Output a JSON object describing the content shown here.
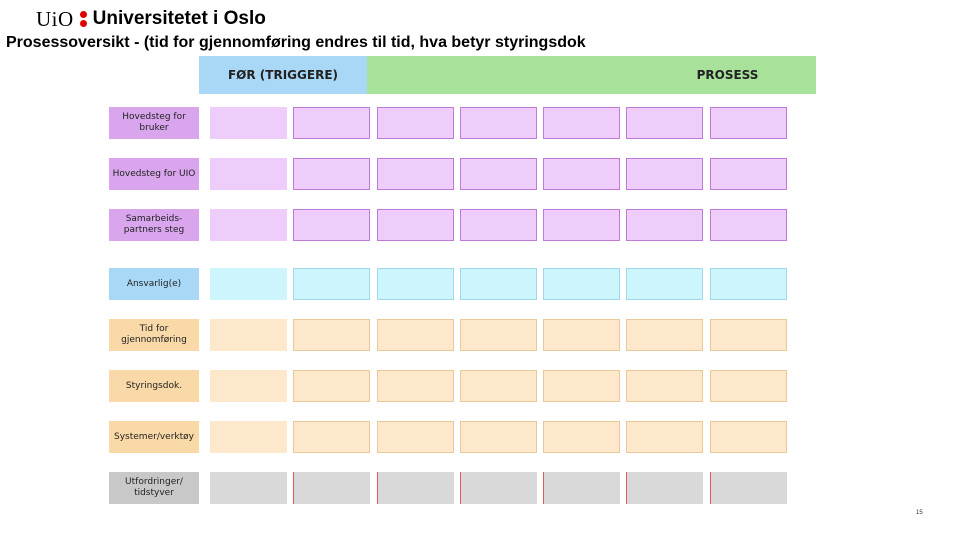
{
  "header": {
    "logo_uio": "UiO",
    "logo_name": "Universitetet i Oslo"
  },
  "slide": {
    "title": "Prosessoversikt - (tid for gjennomføring endres til tid, hva betyr styringsdok",
    "page_number": "15"
  },
  "columns": {
    "trigger_label": "FØR (TRIGGERE)",
    "process_label": "PROSESS",
    "trigger_color": "#a9d8f7",
    "process_color": "#a7e19a"
  },
  "rows": [
    {
      "label": "Hovedsteg for bruker",
      "label_color": "#d9a6ee",
      "cell_color": "#efcdfb",
      "cell_border": "#c07ad8"
    },
    {
      "label": "Hovedsteg for UIO",
      "label_color": "#d9a6ee",
      "cell_color": "#efcdfb",
      "cell_border": "#c07ad8"
    },
    {
      "label": "Samarbeids-partners steg",
      "label_color": "#d9a6ee",
      "cell_color": "#efcdfb",
      "cell_border": "#c07ad8"
    },
    {
      "label": "Ansvarlig(e)",
      "label_color": "#a9d8f7",
      "cell_color": "#cdf5fd",
      "cell_border": "#9fd8ea"
    },
    {
      "label": "Tid for gjennomføring",
      "label_color": "#f9d9a7",
      "cell_color": "#fde8cb",
      "cell_border": "#e9c99a"
    },
    {
      "label": "Styringsdok.",
      "label_color": "#f9d9a7",
      "cell_color": "#fde8cb",
      "cell_border": "#e9c99a"
    },
    {
      "label": "Systemer/verktøy",
      "label_color": "#f9d9a7",
      "cell_color": "#fde8cb",
      "cell_border": "#e9c99a"
    },
    {
      "label": "Utfordringer/ tidstyver",
      "label_color": "#c8c8c8",
      "cell_color": "#d9d9d9",
      "cell_border": "#e05a5a"
    }
  ]
}
